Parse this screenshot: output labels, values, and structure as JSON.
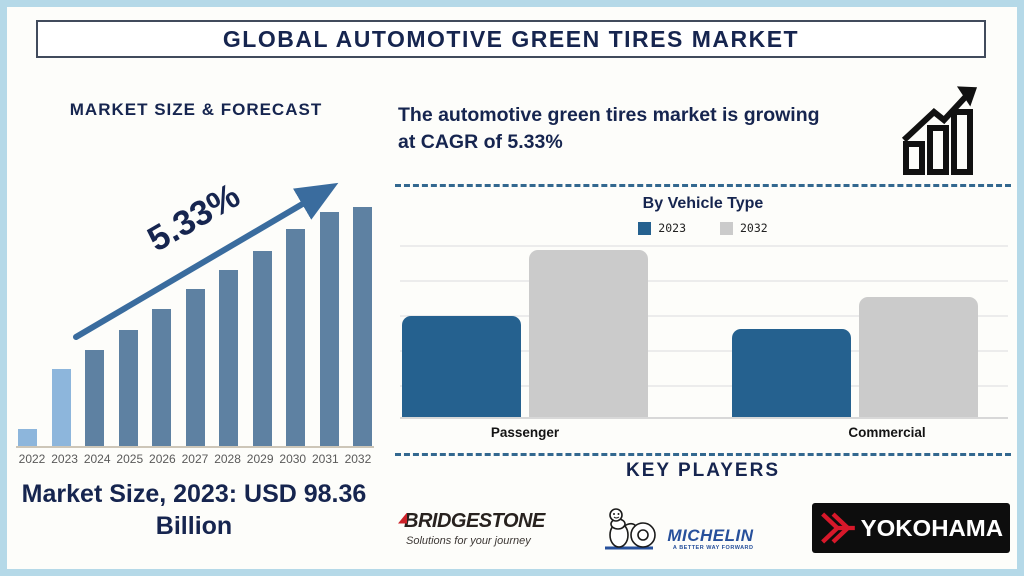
{
  "page": {
    "title": "GLOBAL AUTOMOTIVE GREEN TIRES MARKET"
  },
  "left": {
    "heading": "MARKET SIZE & FORECAST",
    "market_size_note": "Market Size, 2023: USD 98.36 Billion"
  },
  "right": {
    "growth_statement": "The automotive green tires market is growing at CAGR of 5.33%",
    "growth_icon": "rising-bar-chart-with-arrow",
    "key_players_heading": "KEY PLAYERS",
    "key_players": [
      {
        "name": "BRIDGESTONE",
        "tagline": "Solutions for your journey"
      },
      {
        "name": "MICHELIN",
        "tagline": "A BETTER WAY FORWARD"
      },
      {
        "name": "YOKOHAMA"
      }
    ]
  },
  "colors": {
    "navy_text": "#16254f",
    "frame_border": "#b5d9e8",
    "trend_arrow": "#3a6c9e",
    "dashed_divider": "#33688f",
    "bridgestone_red": "#cc2229",
    "michelin_blue": "#27509b",
    "yokohama_red": "#d7182a"
  },
  "chart_data": [
    {
      "type": "bar",
      "title": "Market Size & Forecast",
      "categories": [
        "2022",
        "2023",
        "2024",
        "2025",
        "2026",
        "2027",
        "2028",
        "2029",
        "2030",
        "2031",
        "2032"
      ],
      "values": [
        7,
        32,
        40,
        48,
        57,
        65,
        73,
        81,
        90,
        97,
        99
      ],
      "values_unit": "relative-bar-height-percent (no value axis shown)",
      "annotation": "5.33%",
      "annotation_meaning": "CAGR growth arrow",
      "highlight_categories": [
        "2022",
        "2023"
      ],
      "colors": {
        "highlight": "#8db6dc",
        "normal": "#5e81a2"
      },
      "xlabel": "",
      "ylabel": "",
      "grid": false,
      "callout": "Market Size, 2023: USD 98.36 Billion"
    },
    {
      "type": "bar",
      "title": "By Vehicle Type",
      "categories": [
        "Passenger",
        "Commercial"
      ],
      "series": [
        {
          "name": "2023",
          "color": "#25618f",
          "values": [
            59,
            51
          ]
        },
        {
          "name": "2032",
          "color": "#cbcbcb",
          "values": [
            97,
            70
          ]
        }
      ],
      "values_unit": "relative-bar-height-percent (no value axis shown)",
      "legend_position": "top",
      "grid": true
    }
  ]
}
